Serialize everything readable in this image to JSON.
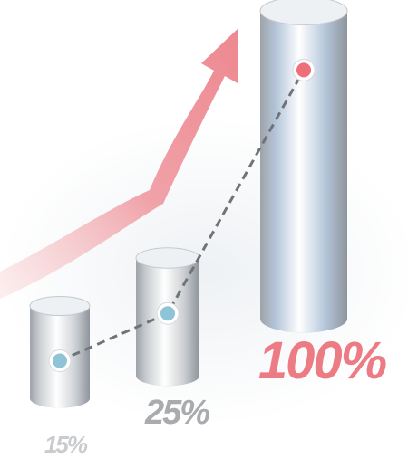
{
  "chart_data": {
    "type": "bar",
    "values": [
      15,
      25,
      100
    ],
    "value_labels": [
      "15%",
      "25%",
      "100%"
    ],
    "colors": [
      "#cfd3d8",
      "#cdd0d4",
      "#b4c6da"
    ]
  }
}
